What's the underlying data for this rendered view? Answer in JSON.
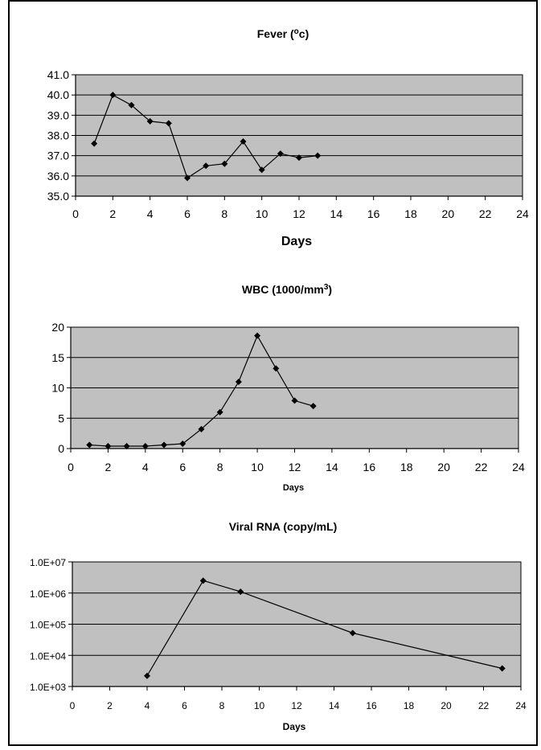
{
  "chart_data": [
    {
      "type": "line",
      "title": "Fever (",
      "title_sup": "o",
      "title_end": "c)",
      "xlabel": "Days",
      "ylabel": "",
      "xlim": [
        0,
        24
      ],
      "ylim": [
        35.0,
        41.0
      ],
      "x_ticks": [
        "0",
        "2",
        "4",
        "6",
        "8",
        "10",
        "12",
        "14",
        "16",
        "18",
        "20",
        "22",
        "24"
      ],
      "y_ticks": [
        "41.0",
        "40.0",
        "39.0",
        "38.0",
        "37.0",
        "36.0",
        "35.0"
      ],
      "grid": true,
      "plot_background": "#c0c0c0",
      "series": [
        {
          "x": [
            1,
            2,
            3,
            4,
            5,
            6,
            7,
            8,
            9,
            10,
            11,
            12,
            13
          ],
          "y": [
            37.6,
            40.0,
            39.5,
            38.7,
            38.6,
            35.9,
            36.5,
            36.6,
            37.7,
            36.3,
            37.1,
            36.9,
            37.0
          ]
        }
      ]
    },
    {
      "type": "line",
      "title": "WBC (1000/mm",
      "title_sup": "3",
      "title_end": ")",
      "xlabel": "Days",
      "ylabel": "",
      "xlim": [
        0,
        24
      ],
      "ylim": [
        0,
        20
      ],
      "x_ticks": [
        "0",
        "2",
        "4",
        "6",
        "8",
        "10",
        "12",
        "14",
        "16",
        "18",
        "20",
        "22",
        "24"
      ],
      "y_ticks": [
        "20",
        "15",
        "10",
        "5",
        "0"
      ],
      "grid": true,
      "plot_background": "#c0c0c0",
      "series": [
        {
          "x": [
            1,
            2,
            3,
            4,
            5,
            6,
            7,
            8,
            9,
            10,
            11,
            12,
            13
          ],
          "y": [
            0.6,
            0.4,
            0.4,
            0.4,
            0.6,
            0.8,
            3.2,
            6.0,
            11.0,
            18.6,
            13.2,
            7.9,
            7.0
          ]
        }
      ]
    },
    {
      "type": "line",
      "title": "Viral RNA (copy/mL)",
      "title_sup": "",
      "title_end": "",
      "xlabel": "Days",
      "ylabel": "",
      "xlim": [
        0,
        24
      ],
      "ylim": [
        1000,
        10000000
      ],
      "y_scale": "log",
      "x_ticks": [
        "0",
        "2",
        "4",
        "6",
        "8",
        "10",
        "12",
        "14",
        "16",
        "18",
        "20",
        "22",
        "24"
      ],
      "y_ticks": [
        "1.0E+07",
        "1.0E+06",
        "1.0E+05",
        "1.0E+04",
        "1.0E+03"
      ],
      "grid": true,
      "plot_background": "#c0c0c0",
      "series": [
        {
          "x": [
            4,
            7,
            9,
            15,
            23
          ],
          "y": [
            2200,
            2500000,
            1100000,
            52000,
            3800
          ]
        }
      ]
    }
  ],
  "colors": {
    "plot_background": "#c0c0c0",
    "line": "#000000",
    "frame": "#000000"
  }
}
